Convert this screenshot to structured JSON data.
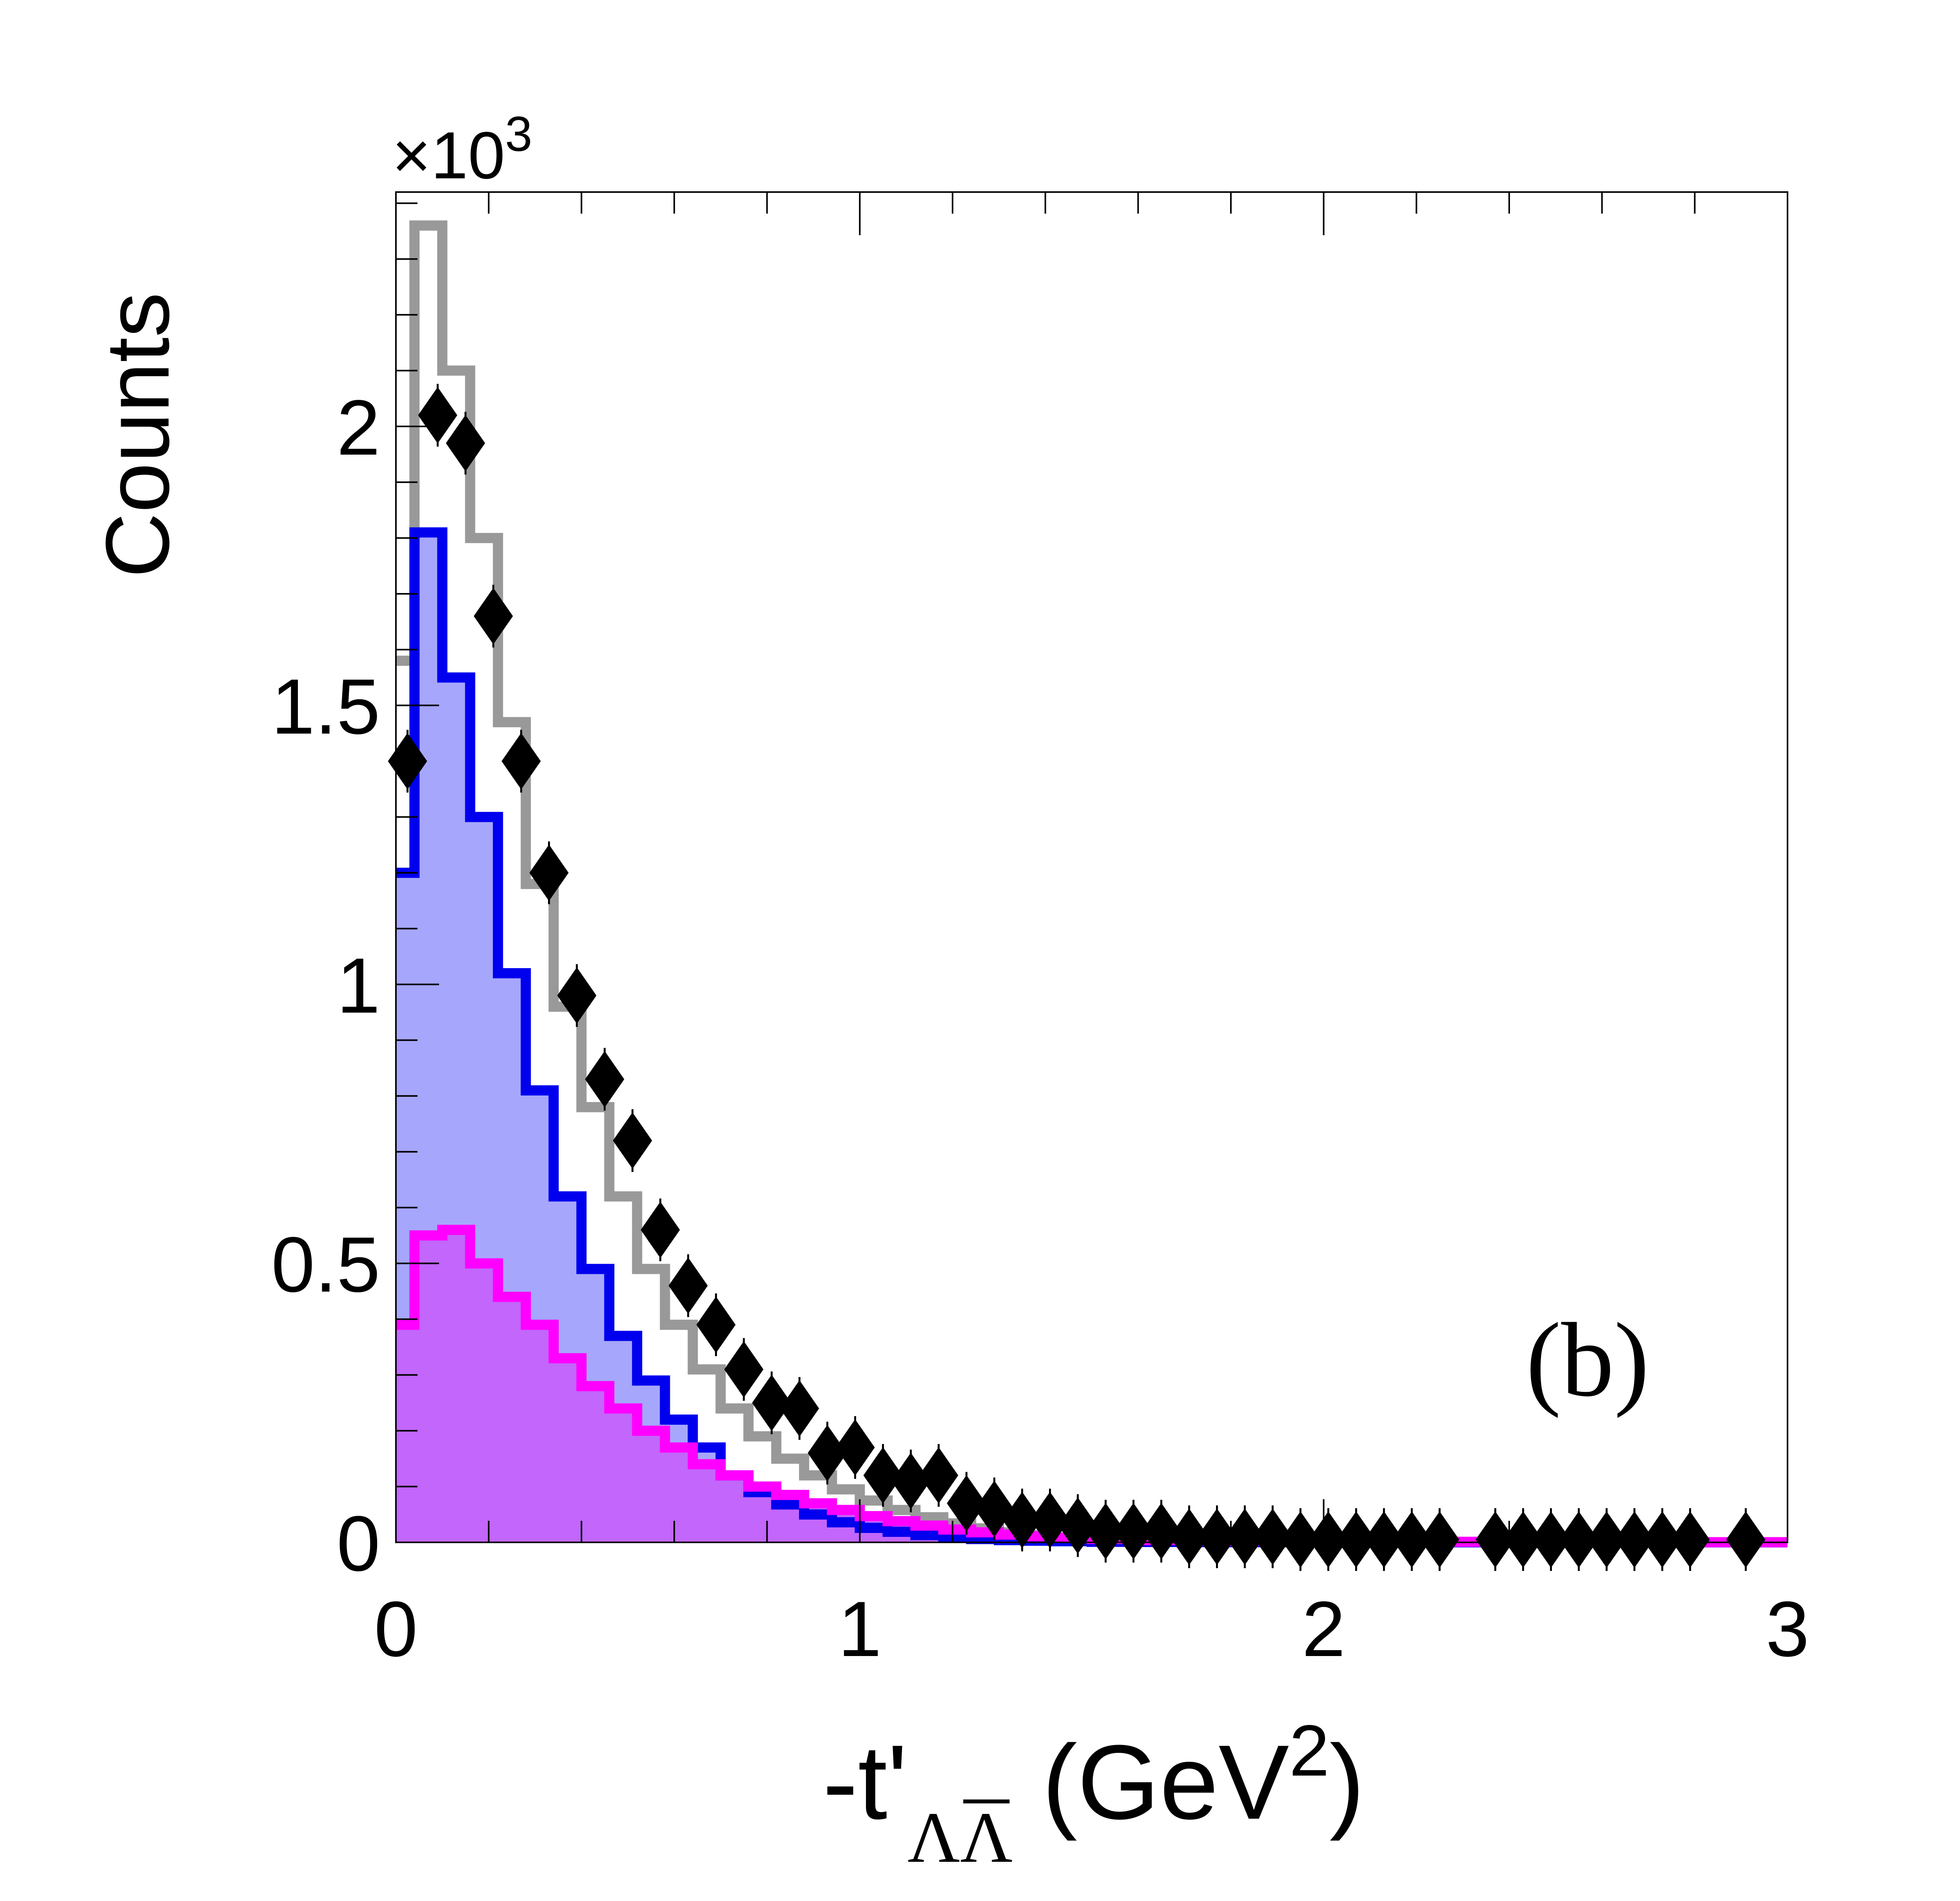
{
  "chart_data": {
    "type": "histogram",
    "panel_label": "(b)",
    "xlabel": {
      "prefix": "-t'",
      "subscript": "ΛΛ",
      "suffix": " (GeV",
      "sup": "2",
      "close": ")"
    },
    "ylabel": "Counts",
    "y_multiplier": {
      "base": "×10",
      "exp": "3"
    },
    "xlim": [
      0,
      3
    ],
    "ylim": [
      0,
      2.42
    ],
    "x_ticks": [
      {
        "value": 0,
        "label": "0"
      },
      {
        "value": 1,
        "label": "1"
      },
      {
        "value": 2,
        "label": "2"
      },
      {
        "value": 3,
        "label": "3"
      }
    ],
    "y_ticks": [
      {
        "value": 0,
        "label": "0"
      },
      {
        "value": 0.5,
        "label": "0.5"
      },
      {
        "value": 1,
        "label": "1"
      },
      {
        "value": 1.5,
        "label": "1.5"
      },
      {
        "value": 2,
        "label": "2"
      }
    ],
    "bin_edges": [
      0,
      0.04,
      0.1,
      0.16,
      0.22,
      0.28,
      0.34,
      0.4,
      0.46,
      0.52,
      0.58,
      0.64,
      0.7,
      0.76,
      0.82,
      0.88,
      0.94,
      1.0,
      1.06,
      1.12,
      1.18,
      1.24,
      1.3,
      1.36,
      1.42,
      1.5,
      1.6,
      1.7,
      1.8,
      1.9,
      2.0,
      2.2,
      2.4,
      2.6,
      2.8,
      3.0
    ],
    "colors": {
      "gray": "#999999",
      "blue": "#0000ee",
      "blue_fill": "#a6a6fc",
      "magenta": "#ff00ff",
      "magenta_fill": "#c266fc",
      "data": "#000000"
    },
    "series": [
      {
        "style": "gray-outline",
        "values": [
          1.58,
          2.36,
          2.1,
          1.8,
          1.47,
          1.18,
          0.96,
          0.78,
          0.62,
          0.49,
          0.39,
          0.31,
          0.24,
          0.19,
          0.15,
          0.12,
          0.095,
          0.075,
          0.058,
          0.045,
          0.034,
          0.025,
          0.018,
          0.013,
          0.009,
          0.006,
          0.004,
          0.003,
          0.002,
          0.001,
          0.0007,
          0.0005,
          0.0003,
          0.0002,
          0.0001
        ]
      },
      {
        "style": "blue-filled",
        "values": [
          1.2,
          1.81,
          1.55,
          1.3,
          1.02,
          0.81,
          0.62,
          0.49,
          0.37,
          0.29,
          0.22,
          0.17,
          0.12,
          0.09,
          0.068,
          0.05,
          0.036,
          0.026,
          0.019,
          0.013,
          0.009,
          0.006,
          0.004,
          0.003,
          0.002,
          0.001,
          0.0007,
          0.0004,
          0.0003,
          0.0002,
          0.0001,
          0.0001,
          0.0,
          0.0,
          0.0
        ]
      },
      {
        "style": "magenta-filled",
        "values": [
          0.39,
          0.55,
          0.56,
          0.5,
          0.44,
          0.39,
          0.33,
          0.28,
          0.24,
          0.2,
          0.17,
          0.14,
          0.12,
          0.1,
          0.085,
          0.07,
          0.058,
          0.047,
          0.038,
          0.03,
          0.023,
          0.018,
          0.014,
          0.011,
          0.008,
          0.006,
          0.004,
          0.003,
          0.0025,
          0.002,
          0.0015,
          0.001,
          0.0008,
          0.0005,
          0.0003
        ]
      }
    ],
    "data_points": {
      "marker": "diamond",
      "x": [
        0.025,
        0.09,
        0.15,
        0.21,
        0.27,
        0.33,
        0.39,
        0.45,
        0.51,
        0.57,
        0.63,
        0.69,
        0.75,
        0.81,
        0.87,
        0.93,
        0.99,
        1.05,
        1.11,
        1.17,
        1.23,
        1.29,
        1.35,
        1.41,
        1.47,
        1.53,
        1.59,
        1.65,
        1.71,
        1.77,
        1.83,
        1.89,
        1.95,
        2.01,
        2.07,
        2.13,
        2.19,
        2.25,
        2.37,
        2.43,
        2.49,
        2.55,
        2.61,
        2.67,
        2.73,
        2.79,
        2.91
      ],
      "y": [
        1.4,
        2.02,
        1.97,
        1.66,
        1.4,
        1.2,
        0.98,
        0.83,
        0.72,
        0.56,
        0.46,
        0.39,
        0.31,
        0.25,
        0.24,
        0.16,
        0.17,
        0.12,
        0.11,
        0.12,
        0.07,
        0.06,
        0.04,
        0.04,
        0.03,
        0.02,
        0.02,
        0.02,
        0.01,
        0.01,
        0.01,
        0.01,
        0.005,
        0.005,
        0.005,
        0.005,
        0.005,
        0.005,
        0.005,
        0.005,
        0.005,
        0.005,
        0.005,
        0.005,
        0.005,
        0.005,
        0.005
      ]
    }
  }
}
